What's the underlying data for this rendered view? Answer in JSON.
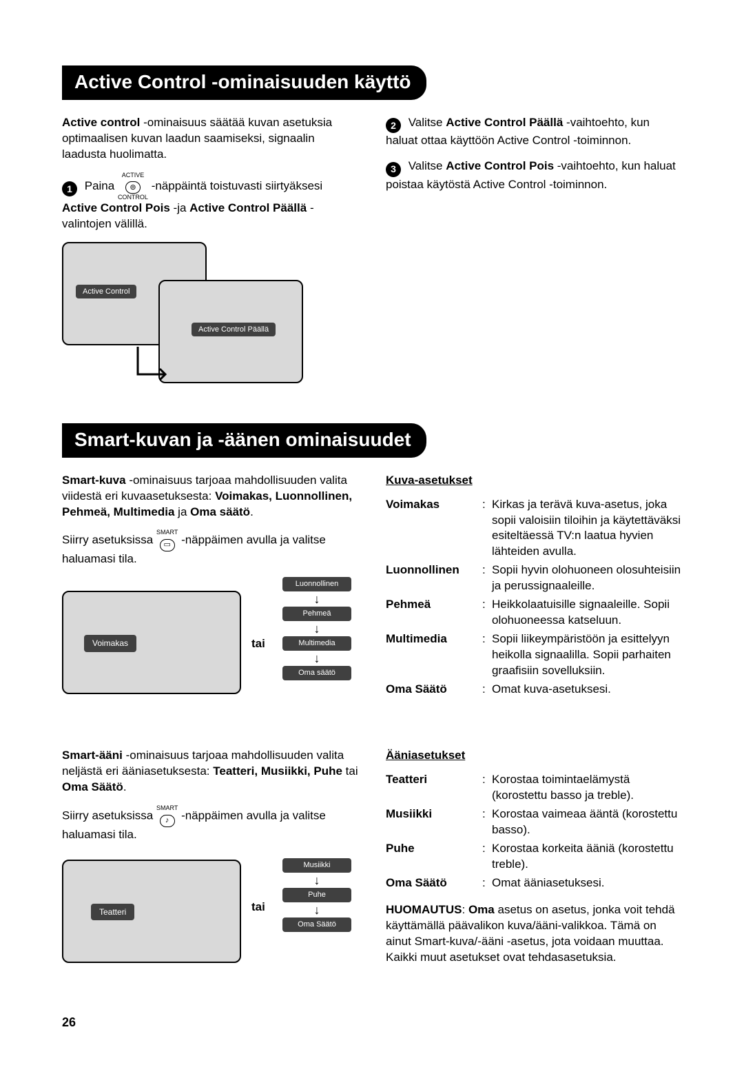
{
  "page_number": "26",
  "colors": {
    "pill_bg": "#404040",
    "tv_bg": "#d9d9d9",
    "black": "#000000",
    "white": "#ffffff"
  },
  "section1": {
    "title": "Active Control -ominaisuuden käyttö",
    "intro_prefix": "Active control ",
    "intro_rest": "-ominaisuus säätää kuvan asetuksia optimaalisen kuvan laadun saamiseksi, signaalin laadusta huolimatta.",
    "step1_a": "Paina ",
    "btn_top": "ACTIVE",
    "btn_glyph": "⊚",
    "btn_bot": "CONTROL",
    "step1_b": " -näppäintä toistuvasti siirtyäksesi ",
    "step1_c": "Active Control Pois ",
    "step1_d": "-ja ",
    "step1_e": "Active Control Päällä ",
    "step1_f": "-valintojen välillä.",
    "step2_a": "Valitse ",
    "step2_b": "Active Control Päällä",
    "step2_c": " -vaihtoehto, kun haluat ottaa käyttöön Active Control -toiminnon.",
    "step3_a": "Valitse ",
    "step3_b": "Active Control Pois ",
    "step3_c": "-vaihtoehto, kun haluat poistaa käytöstä Active Control -toiminnon.",
    "diagram": {
      "label1": "Active Control",
      "label2": "Active Control Päällä"
    }
  },
  "section2": {
    "title": "Smart-kuvan ja -äänen ominaisuudet",
    "kuva_intro_a": "Smart-kuva ",
    "kuva_intro_b": "-ominaisuus tarjoaa mahdollisuuden valita viidestä eri kuvaasetuksesta: ",
    "kuva_intro_c": "Voimakas, Luonnollinen, Pehmeä, Multimedia ",
    "kuva_intro_d": "ja ",
    "kuva_intro_e": "Oma säätö",
    "kuva_intro_f": ".",
    "kuva_instr_a": "Siirry asetuksissa ",
    "smart_label": "SMART",
    "kuva_btn_glyph": "▭",
    "kuva_instr_b": " -näppäimen avulla ja valitse haluamasi tila.",
    "tai": "tai",
    "kuva_diagram": {
      "main": "Voimakas",
      "chain": [
        "Luonnollinen",
        "Pehmeä",
        "Multimedia",
        "Oma säätö"
      ]
    },
    "kuva_settings_title": "Kuva-asetukset",
    "kuva_settings": [
      {
        "k": "Voimakas",
        "v": "Kirkas ja terävä kuva-asetus, joka sopii valoisiin tiloihin ja käytettäväksi esiteltäessä TV:n laatua hyvien lähteiden avulla."
      },
      {
        "k": "Luonnollinen",
        "v": "Sopii hyvin olohuoneen olosuhteisiin ja perussignaaleille."
      },
      {
        "k": "Pehmeä",
        "v": "Heikkolaatuisille signaaleille. Sopii olohuoneessa katseluun."
      },
      {
        "k": "Multimedia",
        "v": "Sopii liikeympäristöön ja esittelyyn heikolla signaalilla. Sopii parhaiten graafisiin sovelluksiin."
      },
      {
        "k": "Oma Säätö",
        "v": "Omat kuva-asetuksesi."
      }
    ],
    "aani_intro_a": "Smart-ääni ",
    "aani_intro_b": "-ominaisuus tarjoaa mahdollisuuden valita neljästä eri ääniasetuksesta: ",
    "aani_intro_c": "Teatteri, Musiikki, Puhe ",
    "aani_intro_d": "tai ",
    "aani_intro_e": "Oma Säätö",
    "aani_intro_f": ".",
    "aani_instr_a": "Siirry asetuksissa ",
    "aani_btn_glyph": "♪",
    "aani_instr_b": " -näppäimen avulla ja valitse haluamasi tila.",
    "aani_diagram": {
      "main": "Teatteri",
      "chain": [
        "Musiikki",
        "Puhe",
        "Oma Säätö"
      ]
    },
    "aani_settings_title": "Ääniasetukset",
    "aani_settings": [
      {
        "k": "Teatteri",
        "v": "Korostaa toimintaelämystä (korostettu basso ja treble)."
      },
      {
        "k": "Musiikki",
        "v": "Korostaa vaimeaa ääntä (korostettu basso)."
      },
      {
        "k": "Puhe",
        "v": "Korostaa korkeita ääniä (korostettu treble)."
      },
      {
        "k": "Oma Säätö",
        "v": "Omat ääniasetuksesi."
      }
    ],
    "note_a": "HUOMAUTUS",
    "note_b": ": ",
    "note_c": "Oma ",
    "note_d": "asetus on asetus, jonka voit tehdä käyttämällä päävalikon kuva/ääni-valikkoa. Tämä on ainut Smart-kuva/-ääni -asetus, jota voidaan muuttaa. Kaikki muut asetukset ovat tehdasasetuksia."
  }
}
